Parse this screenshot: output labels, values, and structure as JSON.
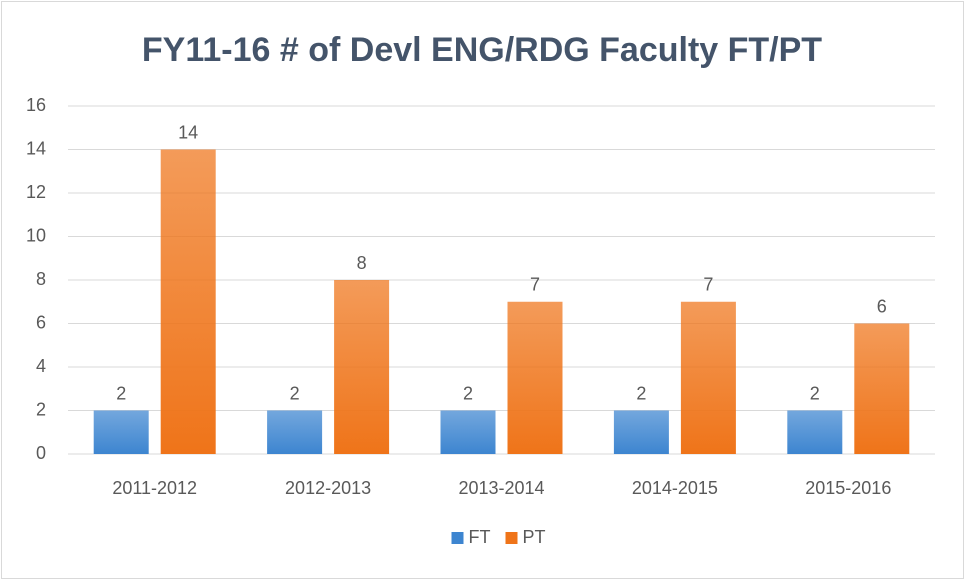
{
  "chart_data": {
    "type": "bar",
    "title": "FY11-16 # of Devl ENG/RDG Faculty FT/PT",
    "categories": [
      "2011-2012",
      "2012-2013",
      "2013-2014",
      "2014-2015",
      "2015-2016"
    ],
    "series": [
      {
        "name": "FT",
        "color": "#3d85d0",
        "values": [
          2,
          2,
          2,
          2,
          2
        ]
      },
      {
        "name": "PT",
        "color": "#ef7419",
        "values": [
          14,
          8,
          7,
          7,
          6
        ]
      }
    ],
    "ylim": [
      0,
      16
    ],
    "yticks": [
      0,
      2,
      4,
      6,
      8,
      10,
      12,
      14,
      16
    ],
    "grid": true,
    "legend": "bottom"
  }
}
